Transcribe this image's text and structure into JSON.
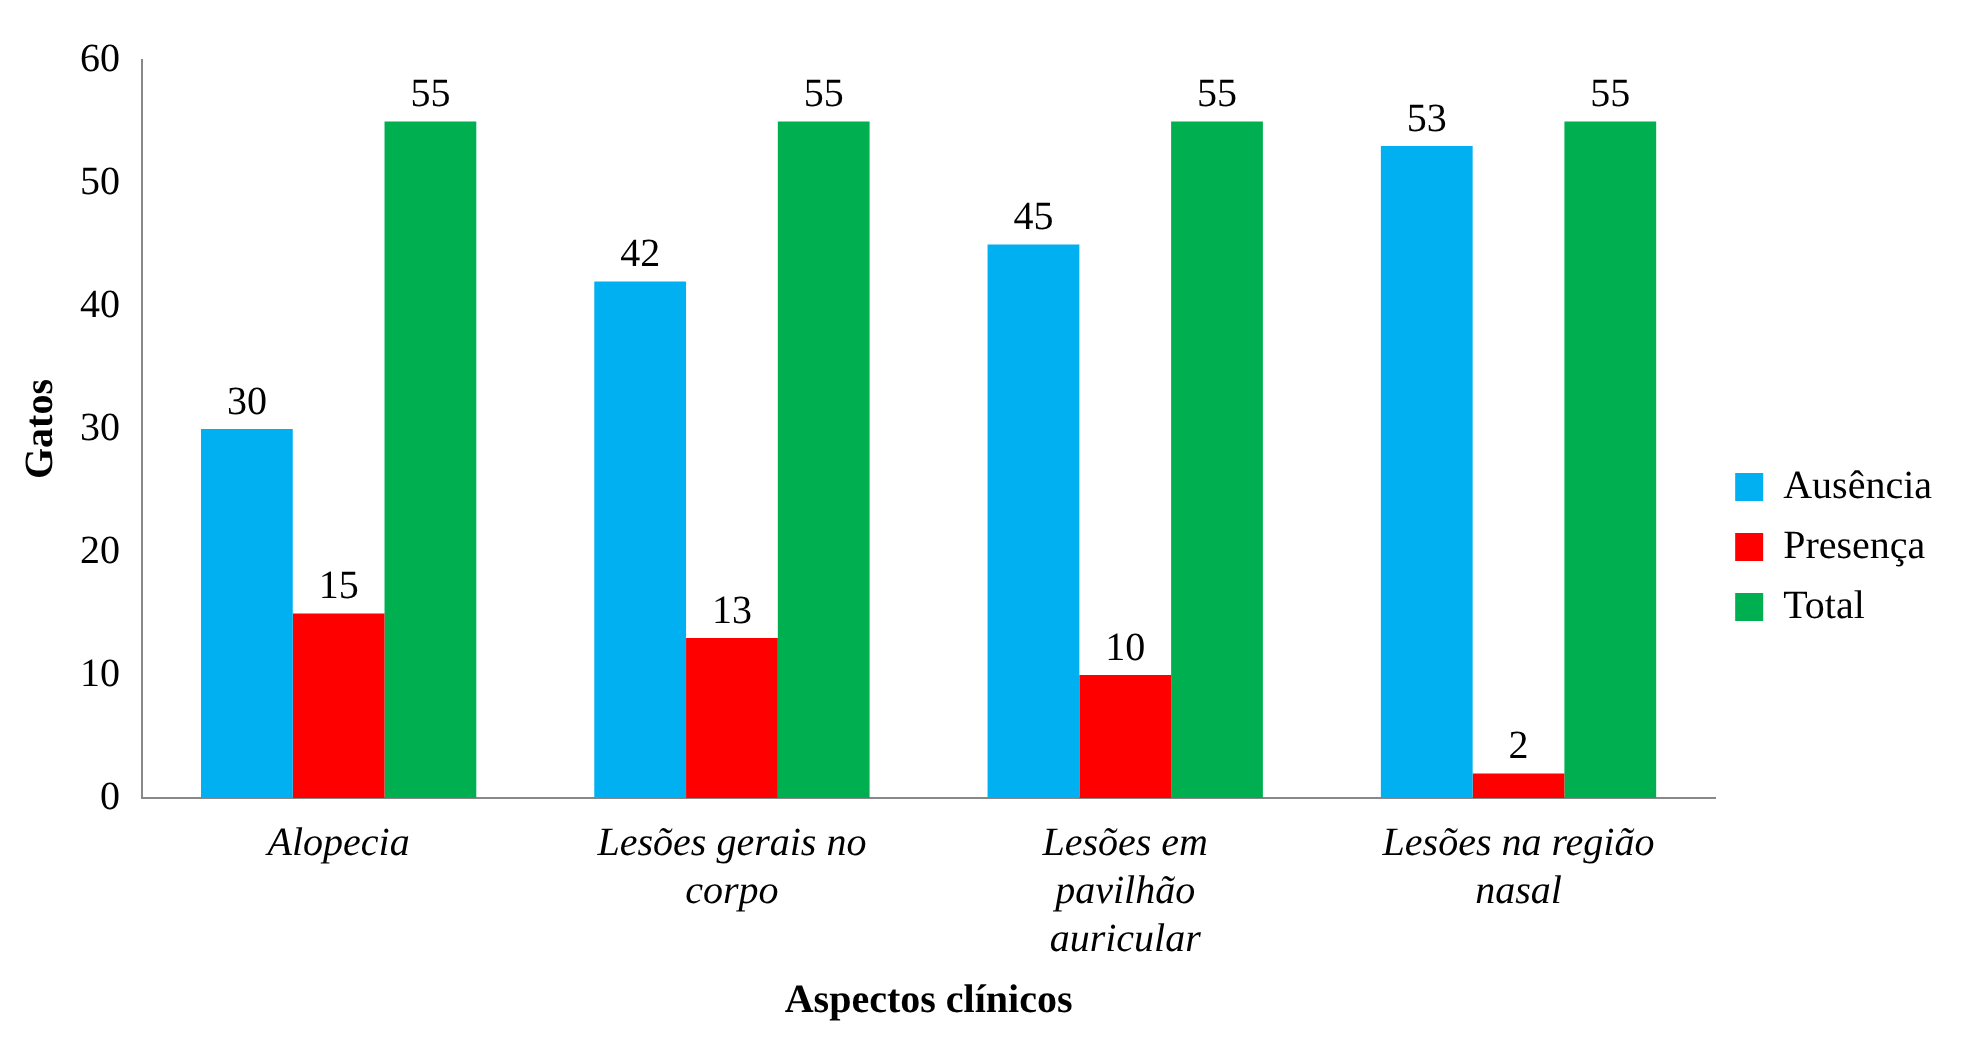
{
  "chart_data": {
    "type": "bar",
    "xlabel": "Aspectos clínicos",
    "ylabel": "Gatos",
    "categories": [
      "Alopecia",
      "Lesões gerais no corpo",
      "Lesões em pavilhão auricular",
      "Lesões na região nasal"
    ],
    "series": [
      {
        "name": "Ausência",
        "color": "#00b0f0",
        "values": [
          30,
          42,
          45,
          53
        ]
      },
      {
        "name": "Presença",
        "color": "#ff0000",
        "values": [
          15,
          13,
          10,
          2
        ]
      },
      {
        "name": "Total",
        "color": "#00b050",
        "values": [
          55,
          55,
          55,
          55
        ]
      }
    ],
    "ylim": [
      0,
      60
    ],
    "yticks": [
      0,
      10,
      20,
      30,
      40,
      50,
      60
    ],
    "grid": false,
    "legend": "right",
    "data_labels": true
  }
}
